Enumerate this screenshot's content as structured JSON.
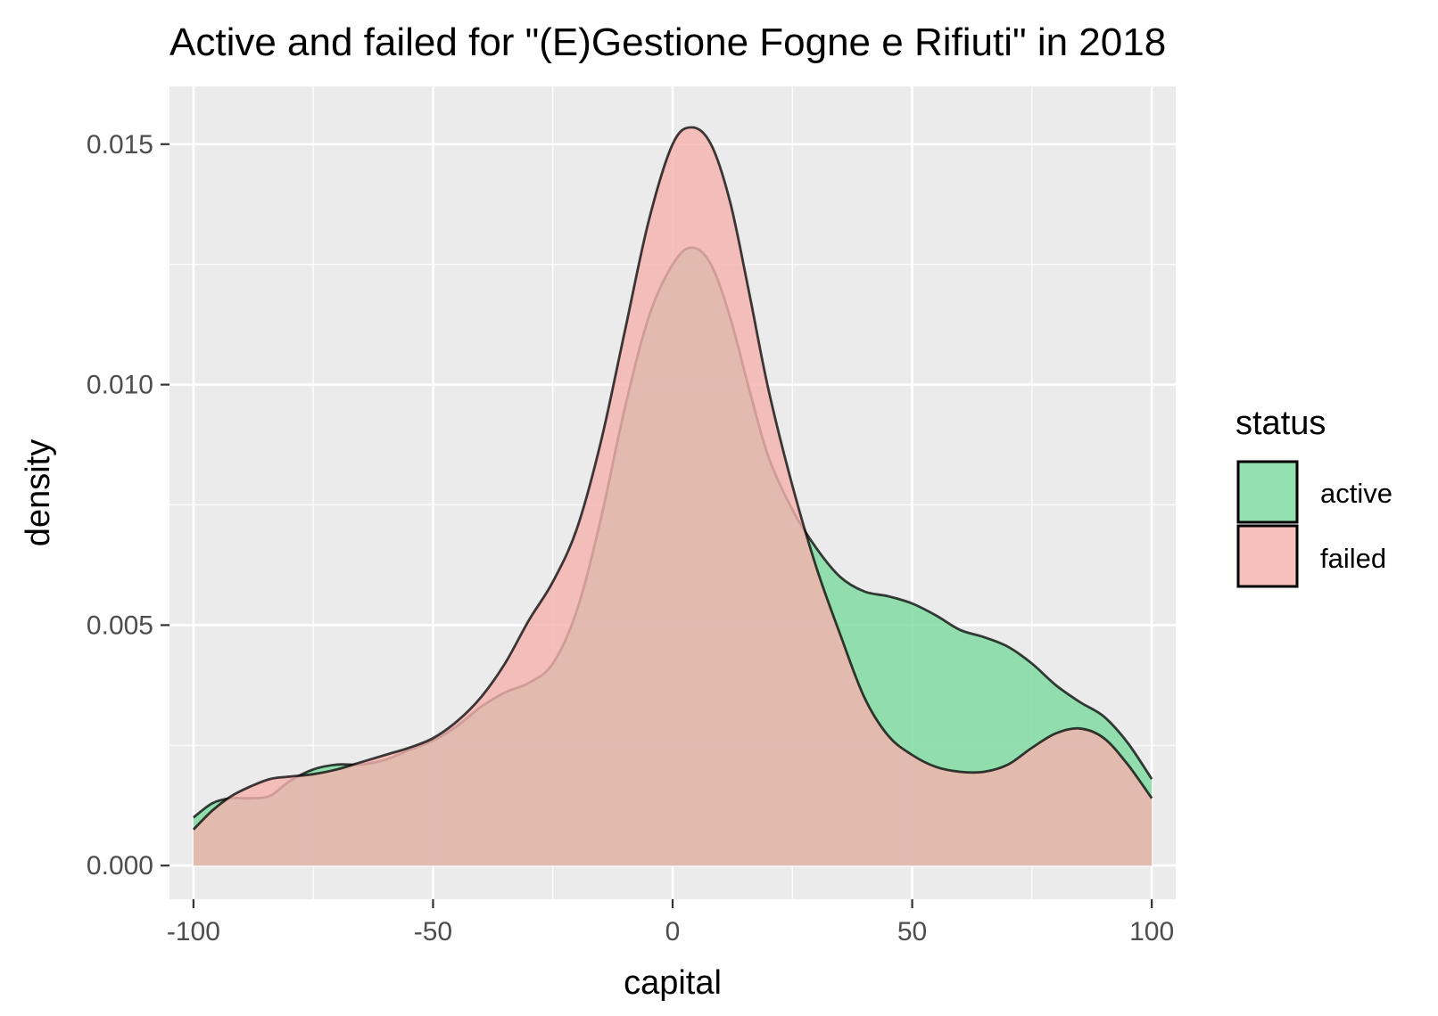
{
  "chart_data": {
    "type": "area",
    "title": "Active and failed for \"(E)Gestione Fogne e Rifiuti\" in 2018",
    "xlabel": "capital",
    "ylabel": "density",
    "xlim": [
      -105,
      105
    ],
    "ylim": [
      -0.0007,
      0.0162
    ],
    "x_ticks": [
      -100,
      -50,
      0,
      50,
      100
    ],
    "x_tick_labels": [
      "-100",
      "-50",
      "0",
      "50",
      "100"
    ],
    "y_ticks": [
      0.0,
      0.005,
      0.01,
      0.015
    ],
    "y_tick_labels": [
      "0.000",
      "0.005",
      "0.010",
      "0.015"
    ],
    "grid": true,
    "background": "#ebebeb",
    "legend": {
      "title": "status",
      "position": "right",
      "items": [
        {
          "label": "active",
          "color": "#7dd9a0"
        },
        {
          "label": "failed",
          "color": "#f4b2ae"
        }
      ]
    },
    "series": [
      {
        "name": "active",
        "color": "#7dd9a0",
        "points": [
          [
            -100,
            0.001
          ],
          [
            -96,
            0.0013
          ],
          [
            -92,
            0.0014
          ],
          [
            -88,
            0.0014
          ],
          [
            -84,
            0.00145
          ],
          [
            -80,
            0.00175
          ],
          [
            -75,
            0.002
          ],
          [
            -70,
            0.0021
          ],
          [
            -65,
            0.0021
          ],
          [
            -60,
            0.0022
          ],
          [
            -55,
            0.0024
          ],
          [
            -50,
            0.0026
          ],
          [
            -45,
            0.0029
          ],
          [
            -40,
            0.0033
          ],
          [
            -35,
            0.0036
          ],
          [
            -30,
            0.0038
          ],
          [
            -25,
            0.0042
          ],
          [
            -20,
            0.0053
          ],
          [
            -15,
            0.0072
          ],
          [
            -10,
            0.0095
          ],
          [
            -5,
            0.0114
          ],
          [
            0,
            0.0125
          ],
          [
            4,
            0.01285
          ],
          [
            8,
            0.0125
          ],
          [
            12,
            0.0114
          ],
          [
            16,
            0.0099
          ],
          [
            20,
            0.0085
          ],
          [
            25,
            0.0074
          ],
          [
            30,
            0.0066
          ],
          [
            35,
            0.006
          ],
          [
            40,
            0.0057
          ],
          [
            45,
            0.0056
          ],
          [
            50,
            0.00545
          ],
          [
            55,
            0.0052
          ],
          [
            60,
            0.0049
          ],
          [
            65,
            0.00475
          ],
          [
            70,
            0.00455
          ],
          [
            75,
            0.0042
          ],
          [
            80,
            0.00375
          ],
          [
            85,
            0.0034
          ],
          [
            90,
            0.0031
          ],
          [
            95,
            0.00255
          ],
          [
            100,
            0.0018
          ]
        ]
      },
      {
        "name": "failed",
        "color": "#f4b2ae",
        "points": [
          [
            -100,
            0.00075
          ],
          [
            -96,
            0.00115
          ],
          [
            -92,
            0.00145
          ],
          [
            -88,
            0.00165
          ],
          [
            -84,
            0.0018
          ],
          [
            -80,
            0.00185
          ],
          [
            -75,
            0.0019
          ],
          [
            -70,
            0.002
          ],
          [
            -65,
            0.00215
          ],
          [
            -60,
            0.0023
          ],
          [
            -55,
            0.00245
          ],
          [
            -50,
            0.00265
          ],
          [
            -45,
            0.003
          ],
          [
            -40,
            0.0035
          ],
          [
            -35,
            0.0042
          ],
          [
            -30,
            0.0051
          ],
          [
            -25,
            0.0059
          ],
          [
            -20,
            0.007
          ],
          [
            -15,
            0.0088
          ],
          [
            -10,
            0.0111
          ],
          [
            -5,
            0.0134
          ],
          [
            0,
            0.015
          ],
          [
            4,
            0.01535
          ],
          [
            8,
            0.015
          ],
          [
            12,
            0.0138
          ],
          [
            16,
            0.0119
          ],
          [
            20,
            0.0099
          ],
          [
            25,
            0.0079
          ],
          [
            30,
            0.0062
          ],
          [
            35,
            0.0048
          ],
          [
            40,
            0.0035
          ],
          [
            45,
            0.0027
          ],
          [
            50,
            0.0023
          ],
          [
            55,
            0.00205
          ],
          [
            60,
            0.00195
          ],
          [
            65,
            0.00195
          ],
          [
            70,
            0.0021
          ],
          [
            75,
            0.00245
          ],
          [
            80,
            0.00275
          ],
          [
            85,
            0.00285
          ],
          [
            90,
            0.00265
          ],
          [
            95,
            0.0021
          ],
          [
            100,
            0.0014
          ]
        ]
      }
    ]
  }
}
